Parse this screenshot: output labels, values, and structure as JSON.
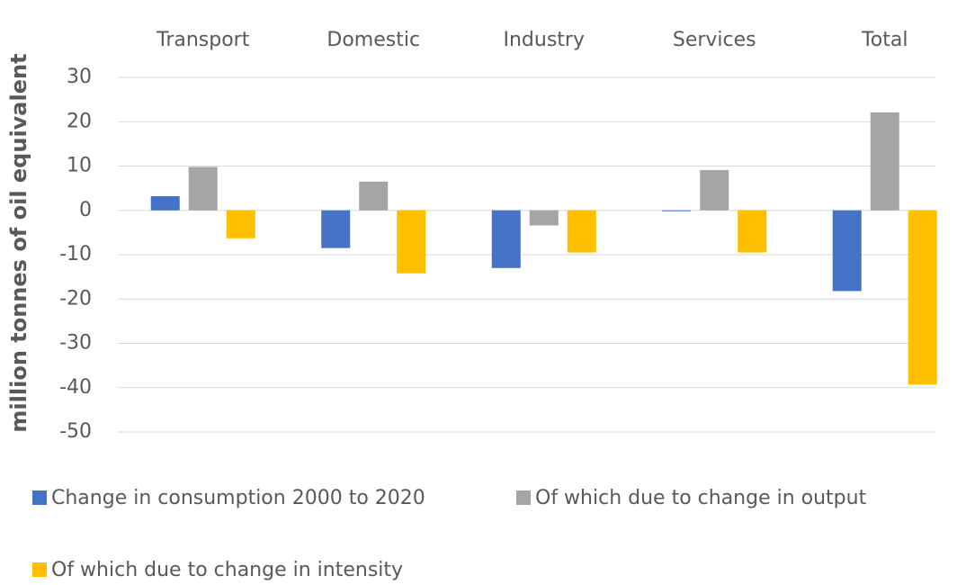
{
  "chart_data": {
    "type": "bar",
    "y_label": "million tonnes of oil equivalent",
    "categories": [
      "Transport",
      "Domestic",
      "Industry",
      "Services",
      "Total"
    ],
    "series": [
      {
        "name": "Change in consumption 2000 to 2020",
        "color": "#4472c4",
        "values": [
          3.2,
          -8.5,
          -13,
          -0.2,
          -18.2
        ]
      },
      {
        "name": "Of which due to change in output",
        "color": "#a5a5a5",
        "values": [
          9.8,
          6.5,
          -3.4,
          9.1,
          22.1
        ]
      },
      {
        "name": "Of which due to change in intensity",
        "color": "#ffc000",
        "values": [
          -6.3,
          -14.2,
          -9.5,
          -9.5,
          -39.3
        ]
      }
    ],
    "ylim": [
      -50,
      30
    ],
    "yticks": [
      -50,
      -40,
      -30,
      -20,
      -10,
      0,
      10,
      20,
      30
    ],
    "grid": true,
    "legend": "bottom",
    "category_labels": "top"
  }
}
